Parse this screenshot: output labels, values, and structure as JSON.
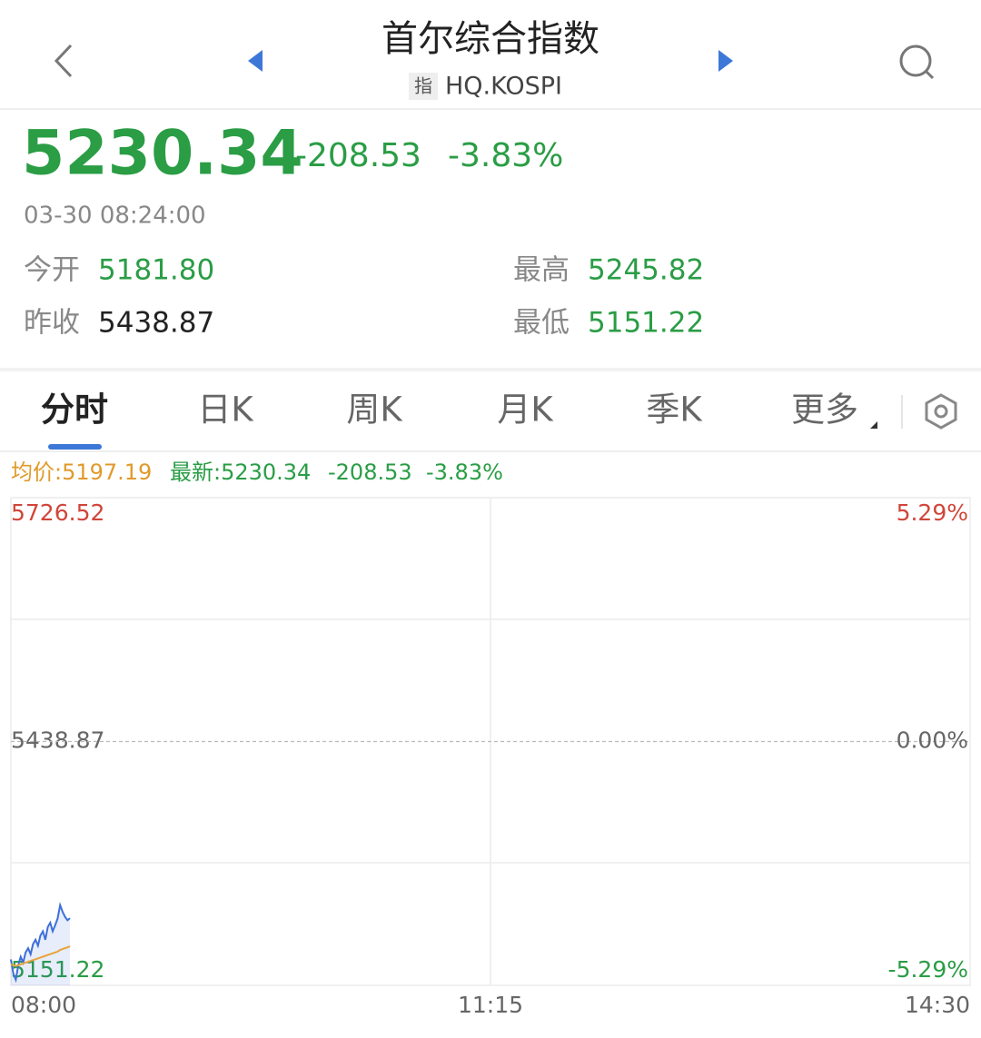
{
  "header": {
    "title": "首尔综合指数",
    "badge": "指",
    "code": "HQ.KOSPI"
  },
  "quote": {
    "price": "5230.34",
    "change": "-208.53",
    "change_pct": "-3.83%",
    "time": "03-30 08:24:00",
    "stats": [
      {
        "label": "今开",
        "value": "5181.80"
      },
      {
        "label": "最高",
        "value": "5245.82"
      },
      {
        "label": "昨收",
        "value": "5438.87"
      },
      {
        "label": "最低",
        "value": "5151.22"
      }
    ]
  },
  "tabs": [
    "分时",
    "日K",
    "周K",
    "月K",
    "季K",
    "更多"
  ],
  "info": {
    "avg": "均价:5197.19",
    "latest": "最新:5230.34",
    "change": "-208.53",
    "change_pct": "-3.83%"
  },
  "chart_data": {
    "type": "line",
    "x": [
      0,
      1,
      2,
      3,
      4,
      5,
      6,
      7,
      8,
      9,
      10,
      11,
      12,
      13,
      14,
      15,
      16,
      17,
      18,
      19,
      20,
      21,
      22,
      23,
      24
    ],
    "xlim": [
      0,
      390
    ],
    "xticks": [
      {
        "value": 0,
        "label": "08:00"
      },
      {
        "value": 195,
        "label": "11:15"
      },
      {
        "value": 390,
        "label": "14:30"
      }
    ],
    "ylim": [
      5151.22,
      5726.52
    ],
    "yticks": [
      5726.52,
      5438.87,
      5151.22
    ],
    "y2lim": [
      -5.29,
      5.29
    ],
    "y2ticks": [
      {
        "value": 5.29,
        "label": "5.29%"
      },
      {
        "value": 0,
        "label": "0.00%"
      },
      {
        "value": -5.29,
        "label": "-5.29%"
      }
    ],
    "series": [
      {
        "color": "#3d6fd9",
        "values": [
          5181.8,
          5165,
          5158,
          5175,
          5185,
          5178,
          5190,
          5195,
          5188,
          5200,
          5205,
          5198,
          5210,
          5215,
          5205,
          5220,
          5225,
          5215,
          5222,
          5230,
          5245.82,
          5238,
          5232,
          5228,
          5230.34
        ]
      },
      {
        "color": "#e8a33c",
        "values": [
          5176,
          5175,
          5174,
          5175,
          5176,
          5177,
          5178,
          5179,
          5180,
          5181,
          5182,
          5183,
          5184,
          5185,
          5186,
          5187,
          5188,
          5189,
          5190,
          5191,
          5193,
          5194,
          5195,
          5196,
          5197.19
        ]
      }
    ]
  }
}
